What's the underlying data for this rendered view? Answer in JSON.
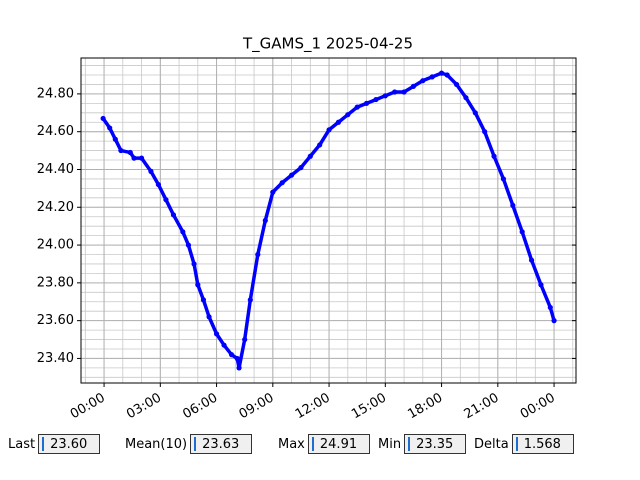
{
  "chart_data": {
    "type": "line",
    "title": "T_GAMS_1 2025-04-25",
    "color": "#0000ff",
    "grid": true,
    "x": [
      -0.05,
      0.3,
      0.6,
      0.9,
      1.4,
      1.6,
      2.0,
      2.5,
      2.9,
      3.3,
      3.7,
      4.2,
      4.5,
      4.8,
      5.0,
      5.3,
      5.6,
      6.0,
      6.4,
      6.8,
      7.1,
      7.2,
      7.5,
      7.8,
      8.2,
      8.6,
      9.0,
      9.5,
      10.0,
      10.5,
      11.0,
      11.5,
      12.0,
      12.5,
      13.0,
      13.5,
      14.0,
      14.5,
      15.0,
      15.5,
      16.0,
      16.5,
      17.0,
      17.5,
      18.0,
      18.3,
      18.8,
      19.3,
      19.8,
      20.3,
      20.8,
      21.3,
      21.8,
      22.3,
      22.8,
      23.3,
      23.8,
      24.0
    ],
    "values": [
      24.67,
      24.62,
      24.56,
      24.5,
      24.49,
      24.46,
      24.46,
      24.39,
      24.32,
      24.24,
      24.16,
      24.07,
      24.0,
      23.9,
      23.79,
      23.71,
      23.62,
      23.53,
      23.47,
      23.42,
      23.4,
      23.35,
      23.5,
      23.71,
      23.95,
      24.13,
      24.28,
      24.33,
      24.37,
      24.41,
      24.47,
      24.53,
      24.61,
      24.65,
      24.69,
      24.73,
      24.75,
      24.77,
      24.79,
      24.81,
      24.81,
      24.84,
      24.87,
      24.89,
      24.91,
      24.9,
      24.85,
      24.78,
      24.7,
      24.6,
      24.47,
      24.35,
      24.21,
      24.07,
      23.92,
      23.79,
      23.67,
      23.6
    ],
    "xlim": [
      -1.23,
      25.17
    ],
    "ylim": [
      23.27,
      24.99
    ],
    "xticks": [
      {
        "value": 0,
        "label": "00:00"
      },
      {
        "value": 3,
        "label": "03:00"
      },
      {
        "value": 6,
        "label": "06:00"
      },
      {
        "value": 9,
        "label": "09:00"
      },
      {
        "value": 12,
        "label": "12:00"
      },
      {
        "value": 15,
        "label": "15:00"
      },
      {
        "value": 18,
        "label": "18:00"
      },
      {
        "value": 21,
        "label": "21:00"
      },
      {
        "value": 24,
        "label": "00:00"
      }
    ],
    "yticks": [
      {
        "value": 23.4,
        "label": "23.40"
      },
      {
        "value": 23.6,
        "label": "23.60"
      },
      {
        "value": 23.8,
        "label": "23.80"
      },
      {
        "value": 24.0,
        "label": "24.00"
      },
      {
        "value": 24.2,
        "label": "24.20"
      },
      {
        "value": 24.4,
        "label": "24.40"
      },
      {
        "value": 24.6,
        "label": "24.60"
      },
      {
        "value": 24.8,
        "label": "24.80"
      }
    ]
  },
  "stats": [
    {
      "label": "Last",
      "value": "23.60"
    },
    {
      "label": "Mean(10)",
      "value": "23.63"
    },
    {
      "label": "Max",
      "value": "24.91"
    },
    {
      "label": "Min",
      "value": "23.35"
    },
    {
      "label": "Delta",
      "value": "1.568"
    }
  ]
}
